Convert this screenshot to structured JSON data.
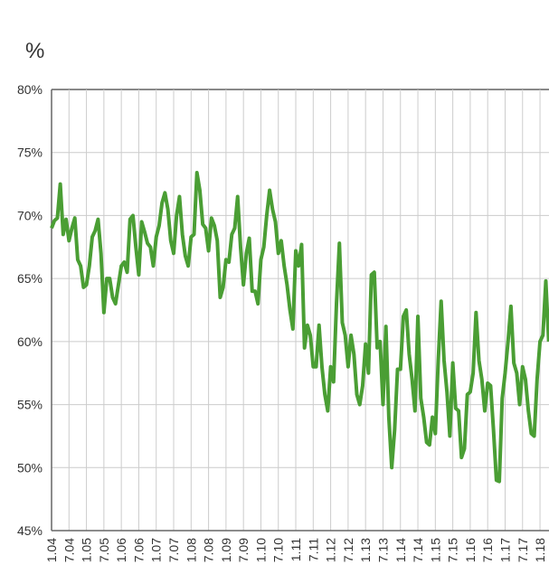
{
  "chart_data": {
    "type": "line",
    "ylabel": "%",
    "categories": [
      "1.04",
      null,
      null,
      null,
      null,
      null,
      "7.04",
      null,
      null,
      null,
      null,
      null,
      "1.05",
      null,
      null,
      null,
      null,
      null,
      "7.05",
      null,
      null,
      null,
      null,
      null,
      "1.06",
      null,
      null,
      null,
      null,
      null,
      "7.06",
      null,
      null,
      null,
      null,
      null,
      "1.07",
      null,
      null,
      null,
      null,
      null,
      "7.07",
      null,
      null,
      null,
      null,
      null,
      "1.08",
      null,
      null,
      null,
      null,
      null,
      "7.08",
      null,
      null,
      null,
      null,
      null,
      "1.09",
      null,
      null,
      null,
      null,
      null,
      "7.09",
      null,
      null,
      null,
      null,
      null,
      "1.10",
      null,
      null,
      null,
      null,
      null,
      "7.10",
      null,
      null,
      null,
      null,
      null,
      "1.11",
      null,
      null,
      null,
      null,
      null,
      "7.11",
      null,
      null,
      null,
      null,
      null,
      "1.12",
      null,
      null,
      null,
      null,
      null,
      "7.12",
      null,
      null,
      null,
      null,
      null,
      "1.13",
      null,
      null,
      null,
      null,
      null,
      "7.13",
      null,
      null,
      null,
      null,
      null,
      "1.14",
      null,
      null,
      null,
      null,
      null,
      "7.14",
      null,
      null,
      null,
      null,
      null,
      "1.15",
      null,
      null,
      null,
      null,
      null,
      "7.15",
      null,
      null,
      null,
      null,
      null,
      "1.16",
      null,
      null,
      null,
      null,
      null,
      "7.16",
      null,
      null,
      null,
      null,
      null,
      "1.17",
      null,
      null,
      null,
      null,
      null,
      "7.17",
      null,
      null,
      null,
      null,
      null,
      "1.18",
      null,
      null,
      null
    ],
    "values": [
      69,
      69.6,
      69.8,
      72.5,
      68.5,
      69.7,
      68,
      69,
      69.8,
      66.5,
      66,
      64.3,
      64.5,
      66,
      68.3,
      68.8,
      69.7,
      67,
      62.3,
      65,
      65,
      63.5,
      63,
      64.5,
      66,
      66.3,
      65.5,
      69.7,
      70,
      67.5,
      65.3,
      69.5,
      68.7,
      67.8,
      67.5,
      66,
      68.3,
      69.2,
      71,
      71.8,
      70.5,
      68,
      67,
      70,
      71.5,
      68.5,
      66.8,
      66,
      68.3,
      68.5,
      73.4,
      72,
      69.3,
      69,
      67.2,
      69.8,
      69.2,
      68,
      63.5,
      64.3,
      66.5,
      66.3,
      68.5,
      69,
      71.5,
      67.5,
      64.5,
      67,
      68.2,
      64,
      64,
      63,
      66.5,
      67.5,
      70,
      72,
      70.5,
      69.5,
      67,
      68,
      66,
      64.5,
      62.5,
      61,
      67.2,
      66,
      67.7,
      59.5,
      61.3,
      60.5,
      58,
      58,
      61.3,
      58,
      55.8,
      54.5,
      58,
      56.8,
      63,
      67.8,
      61.5,
      60.5,
      58,
      60.5,
      59,
      55.8,
      55,
      56.5,
      59.8,
      57.5,
      65.3,
      65.5,
      59.5,
      60,
      55,
      61.2,
      54,
      50,
      53,
      57.8,
      57.8,
      62,
      62.5,
      59,
      57,
      54.5,
      62,
      55.5,
      54,
      52,
      51.8,
      54,
      52.7,
      58.5,
      63.2,
      58.5,
      56,
      52.5,
      58.3,
      54.7,
      54.5,
      50.8,
      51.5,
      55.8,
      56,
      57.5,
      62.3,
      58.5,
      57,
      54.5,
      56.7,
      56.5,
      53,
      49,
      48.9,
      55.5,
      57.5,
      60,
      62.8,
      58.3,
      57.5,
      55,
      58,
      57,
      54.5,
      52.7,
      52.5,
      57,
      60,
      60.5,
      64.8,
      60
    ],
    "color": "#4a9e34",
    "ylim": [
      45,
      80
    ],
    "yticks": [
      {
        "value": 45,
        "label": "45%"
      },
      {
        "value": 50,
        "label": "50%"
      },
      {
        "value": 55,
        "label": "55%"
      },
      {
        "value": 60,
        "label": "60%"
      },
      {
        "value": 65,
        "label": "65%"
      },
      {
        "value": 70,
        "label": "70%"
      },
      {
        "value": 75,
        "label": "75%"
      },
      {
        "value": 80,
        "label": "80%"
      }
    ],
    "grid": true
  }
}
